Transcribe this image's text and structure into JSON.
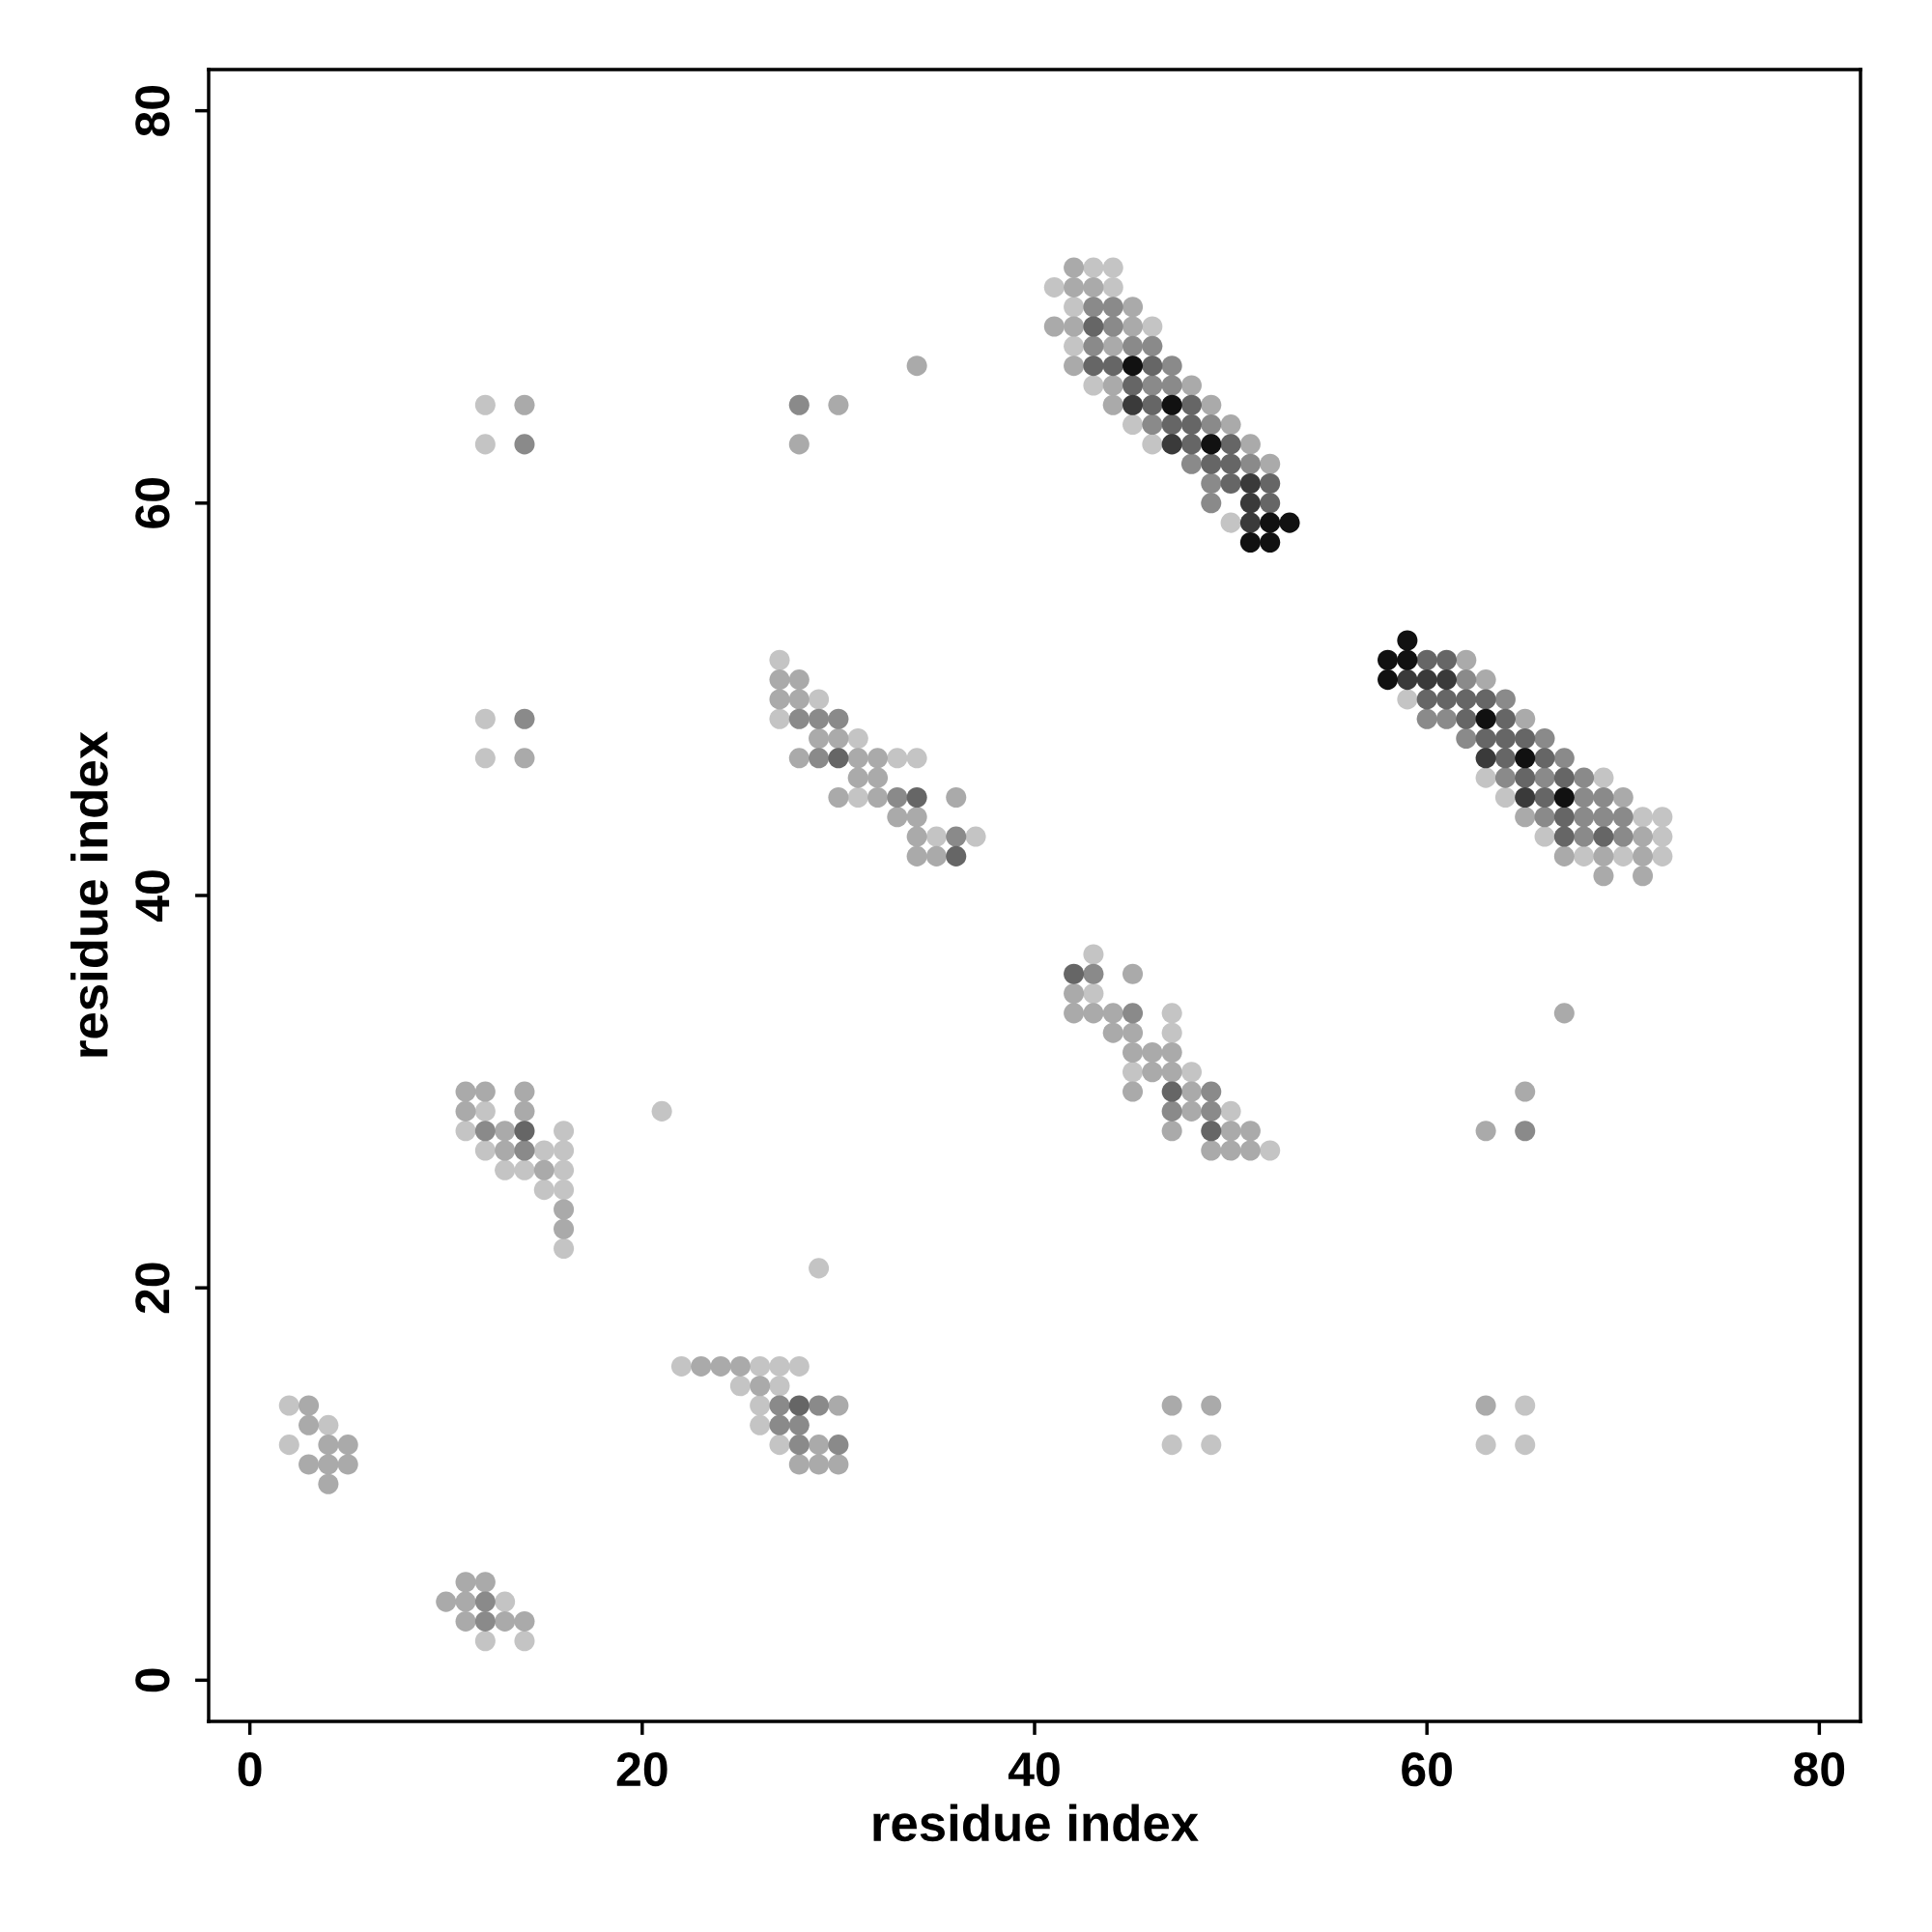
{
  "chart_data": {
    "type": "scatter",
    "xlabel": "residue index",
    "ylabel": "residue index",
    "xlim": [
      -2.1,
      82.1
    ],
    "ylim": [
      -2.1,
      82.1
    ],
    "xticks": [
      0,
      20,
      40,
      60,
      80
    ],
    "yticks": [
      0,
      20,
      40,
      60,
      80
    ],
    "marker": "circle",
    "series": [
      {
        "color": "#c4c4c4",
        "x": [
          43,
          44,
          41,
          44,
          42,
          46,
          42,
          43,
          45,
          46,
          50,
          59,
          63,
          69,
          64,
          71,
          72,
          66,
          72,
          68,
          70,
          72,
          27,
          29,
          27,
          31,
          33,
          34,
          31,
          35,
          37,
          43,
          43,
          47,
          47,
          45,
          48,
          50,
          52,
          12,
          11,
          16,
          12,
          15,
          16,
          13,
          14,
          16,
          15,
          16,
          16,
          2,
          4,
          2,
          13,
          12,
          14,
          22,
          26,
          27,
          28,
          25,
          27,
          26,
          26,
          27,
          12,
          12,
          12,
          12,
          21,
          29,
          47,
          49,
          65,
          63,
          65
        ],
        "values": [
          72,
          72,
          71,
          71,
          70,
          69,
          68,
          66,
          64,
          63,
          59,
          50,
          46,
          46,
          45,
          44,
          44,
          43,
          43,
          42,
          42,
          42,
          52,
          50,
          49,
          48,
          47,
          47,
          45,
          43,
          43,
          37,
          35,
          34,
          33,
          31,
          31,
          29,
          27,
          29,
          28,
          28,
          27,
          27,
          27,
          26,
          26,
          26,
          25,
          25,
          22,
          14,
          13,
          12,
          4,
          2,
          2,
          16,
          16,
          16,
          16,
          15,
          15,
          14,
          13,
          12,
          65,
          63,
          49,
          47,
          29,
          21,
          12,
          12,
          14,
          12,
          12
        ]
      },
      {
        "color": "#aaaaaa",
        "x": [
          42,
          42,
          43,
          45,
          41,
          42,
          45,
          44,
          42,
          44,
          48,
          44,
          49,
          50,
          51,
          52,
          62,
          63,
          65,
          70,
          65,
          71,
          67,
          69,
          71,
          69,
          71,
          27,
          28,
          27,
          28,
          29,
          30,
          28,
          31,
          32,
          31,
          32,
          30,
          32,
          36,
          33,
          34,
          34,
          34,
          35,
          45,
          42,
          42,
          43,
          44,
          44,
          45,
          45,
          46,
          47,
          46,
          47,
          45,
          48,
          48,
          47,
          50,
          51,
          49,
          50,
          51,
          11,
          12,
          14,
          11,
          14,
          13,
          13,
          15,
          16,
          16,
          3,
          3,
          4,
          5,
          3,
          4,
          5,
          4,
          11,
          12,
          10,
          11,
          11,
          13,
          14,
          23,
          24,
          25,
          26,
          30,
          29,
          28,
          29,
          30,
          14,
          30,
          28,
          34,
          14,
          47,
          49,
          63,
          67,
          65,
          63
        ],
        "values": [
          72,
          71,
          71,
          70,
          69,
          69,
          69,
          68,
          67,
          66,
          66,
          65,
          65,
          64,
          63,
          62,
          52,
          51,
          49,
          45,
          44,
          43,
          42,
          42,
          42,
          41,
          41,
          51,
          51,
          50,
          50,
          48,
          48,
          47,
          47,
          47,
          46,
          46,
          45,
          45,
          45,
          44,
          44,
          43,
          42,
          42,
          36,
          35,
          34,
          34,
          34,
          33,
          33,
          32,
          32,
          32,
          31,
          31,
          30,
          30,
          29,
          28,
          28,
          28,
          27,
          27,
          27,
          30,
          30,
          30,
          29,
          29,
          28,
          27,
          26,
          24,
          23,
          14,
          13,
          12,
          12,
          11,
          11,
          11,
          10,
          5,
          5,
          4,
          4,
          3,
          3,
          3,
          16,
          16,
          16,
          15,
          14,
          12,
          11,
          11,
          11,
          65,
          65,
          63,
          67,
          47,
          14,
          14,
          14,
          34,
          30,
          28
        ]
      },
      {
        "color": "#8a8a8a",
        "x": [
          43,
          44,
          44,
          43,
          45,
          46,
          47,
          46,
          47,
          46,
          49,
          48,
          51,
          49,
          49,
          62,
          64,
          60,
          61,
          62,
          66,
          67,
          64,
          66,
          68,
          68,
          69,
          66,
          68,
          69,
          70,
          68,
          70,
          28,
          29,
          30,
          29,
          33,
          36,
          43,
          45,
          49,
          47,
          49,
          12,
          14,
          12,
          12,
          27,
          29,
          27,
          28,
          28,
          30,
          14,
          28,
          14,
          65
        ],
        "values": [
          70,
          70,
          69,
          68,
          68,
          68,
          67,
          66,
          66,
          64,
          64,
          62,
          62,
          61,
          60,
          51,
          50,
          49,
          49,
          48,
          48,
          47,
          46,
          46,
          46,
          45,
          45,
          44,
          44,
          44,
          44,
          43,
          43,
          49,
          49,
          49,
          47,
          45,
          43,
          36,
          34,
          30,
          29,
          29,
          28,
          27,
          4,
          3,
          14,
          14,
          13,
          13,
          12,
          12,
          63,
          65,
          49,
          28
        ]
      },
      {
        "color": "#666666",
        "x": [
          43,
          43,
          44,
          46,
          45,
          46,
          48,
          47,
          48,
          48,
          50,
          49,
          50,
          50,
          52,
          52,
          60,
          61,
          60,
          61,
          62,
          63,
          62,
          64,
          63,
          64,
          65,
          64,
          66,
          65,
          67,
          66,
          67,
          67,
          69,
          30,
          34,
          36,
          42,
          47,
          49,
          14,
          28
        ],
        "values": [
          69,
          67,
          67,
          67,
          66,
          65,
          65,
          64,
          64,
          63,
          63,
          62,
          62,
          61,
          61,
          60,
          52,
          52,
          50,
          50,
          50,
          50,
          49,
          49,
          48,
          48,
          48,
          47,
          47,
          46,
          46,
          45,
          44,
          43,
          43,
          47,
          45,
          42,
          36,
          30,
          28,
          28,
          14
        ]
      },
      {
        "color": "#3a3a3a",
        "x": [
          45,
          47,
          51,
          51,
          51,
          59,
          60,
          61,
          63,
          65
        ],
        "values": [
          65,
          63,
          61,
          60,
          59,
          51,
          51,
          51,
          47,
          45
        ]
      },
      {
        "color": "#111111",
        "x": [
          45,
          47,
          49,
          52,
          53,
          51,
          52,
          59,
          58,
          59,
          58,
          63,
          65,
          67
        ],
        "values": [
          67,
          65,
          63,
          59,
          59,
          58,
          58,
          53,
          52,
          52,
          51,
          49,
          47,
          45
        ]
      }
    ]
  }
}
